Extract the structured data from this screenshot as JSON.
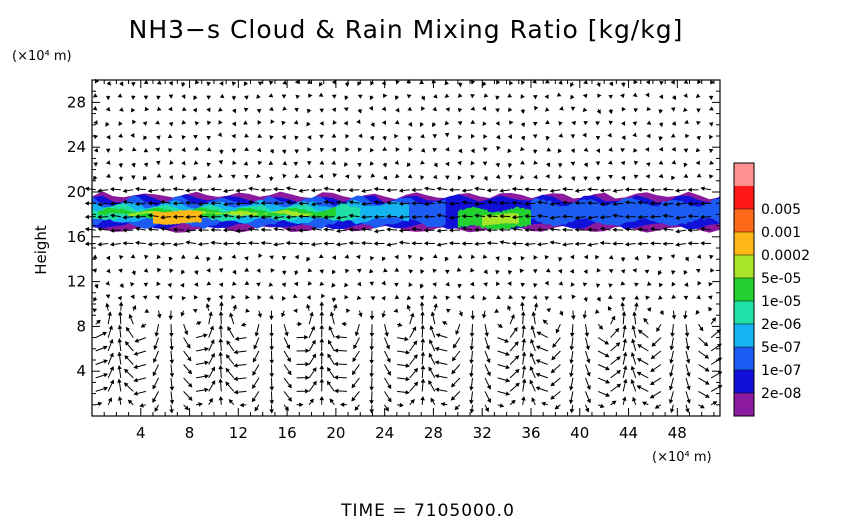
{
  "chart_data": {
    "type": "heatmap",
    "title": "NH3−s Cloud & Rain Mixing Ratio [kg/kg]",
    "ylabel": "Height",
    "xunit": "(×10⁴ m)",
    "yunit": "(×10⁴ m)",
    "footer": "TIME  =  7105000.0",
    "xlim": [
      0,
      51.5
    ],
    "ylim": [
      0,
      30
    ],
    "xticks": [
      4,
      8,
      12,
      16,
      20,
      24,
      28,
      32,
      36,
      40,
      44,
      48
    ],
    "yticks": [
      4,
      8,
      12,
      16,
      20,
      24,
      28
    ],
    "colorbar": {
      "levels": [
        "2e-08",
        "1e-07",
        "5e-07",
        "2e-06",
        "1e-05",
        "5e-05",
        "0.0002",
        "0.001",
        "0.005"
      ],
      "colors": [
        "#8B1A9E",
        "#1010D8",
        "#1C5CF2",
        "#14B4F0",
        "#20E0A8",
        "#22D030",
        "#A8E628",
        "#FFB818",
        "#FF6818",
        "#FF1818",
        "#FF9090"
      ]
    },
    "cloud_layer": {
      "base_height": 17,
      "top_height": 19.5,
      "max_level": "0.0002",
      "max_regions_x": [
        [
          5,
          9
        ],
        [
          33,
          35
        ]
      ]
    },
    "wind_vectors": "velocity arrows on grid, strong circulation cells below 10 km"
  }
}
